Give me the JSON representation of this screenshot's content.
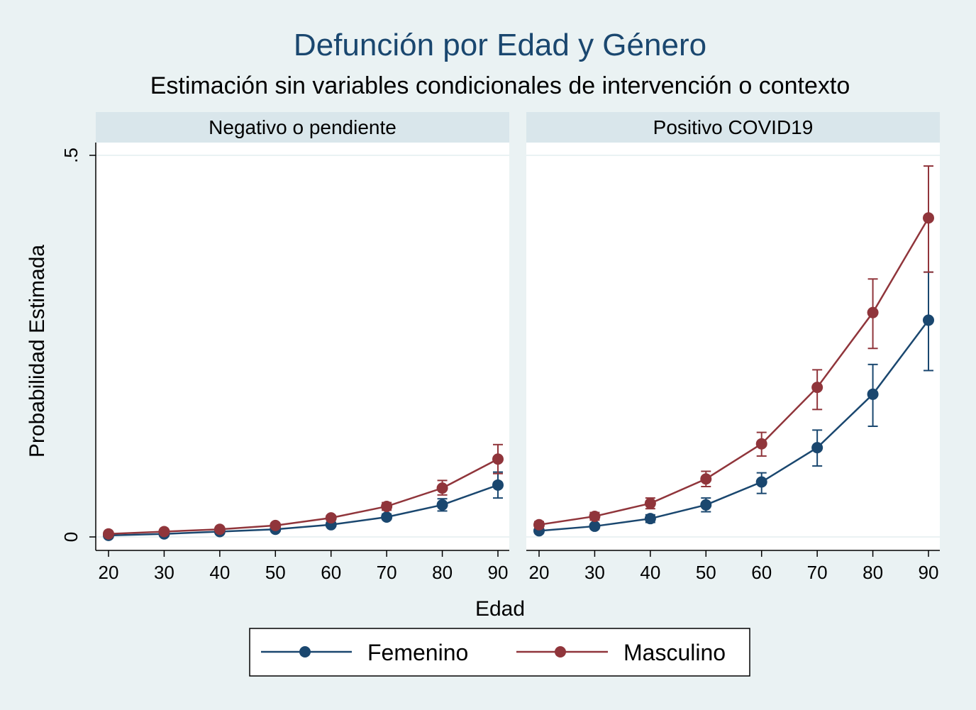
{
  "chart_data": {
    "type": "line",
    "title": "Defunción por Edad y Género",
    "subtitle": "Estimación sin variables condicionales de intervención o contexto",
    "xlabel": "Edad",
    "ylabel": "Probabilidad Estimada",
    "x_ticks": [
      20,
      30,
      40,
      50,
      60,
      70,
      80,
      90
    ],
    "x_tick_labels": [
      "20",
      "30",
      "40",
      "50",
      "60",
      "70",
      "80",
      "90"
    ],
    "y_ticks": [
      0,
      0.5
    ],
    "y_tick_labels": [
      "0",
      ".5"
    ],
    "ylim": [
      0,
      0.5
    ],
    "grid": true,
    "legend_position": "bottom",
    "legend": [
      "Femenino",
      "Masculino"
    ],
    "colors": {
      "Femenino": "#1a476f",
      "Masculino": "#90353b",
      "background": "#eaf2f3",
      "panel": "#ffffff",
      "strip": "#d9e6eb",
      "title": "#1a476f"
    },
    "panels": [
      {
        "title": "Negativo o pendiente",
        "x": [
          20,
          30,
          40,
          50,
          60,
          70,
          80,
          90
        ],
        "series": [
          {
            "name": "Femenino",
            "values": [
              0.002,
              0.004,
              0.007,
              0.01,
              0.016,
              0.026,
              0.042,
              0.068
            ],
            "ci_low": [
              0.001,
              0.003,
              0.006,
              0.009,
              0.014,
              0.023,
              0.034,
              0.051
            ],
            "ci_high": [
              0.003,
              0.005,
              0.008,
              0.011,
              0.018,
              0.03,
              0.05,
              0.085
            ]
          },
          {
            "name": "Masculino",
            "values": [
              0.004,
              0.007,
              0.01,
              0.015,
              0.025,
              0.04,
              0.064,
              0.102
            ],
            "ci_low": [
              0.003,
              0.006,
              0.009,
              0.013,
              0.022,
              0.035,
              0.055,
              0.083
            ],
            "ci_high": [
              0.005,
              0.008,
              0.011,
              0.017,
              0.028,
              0.045,
              0.074,
              0.121
            ]
          }
        ]
      },
      {
        "title": "Positivo COVID19",
        "x": [
          20,
          30,
          40,
          50,
          60,
          70,
          80,
          90
        ],
        "series": [
          {
            "name": "Femenino",
            "values": [
              0.008,
              0.014,
              0.024,
              0.042,
              0.072,
              0.117,
              0.187,
              0.284
            ],
            "ci_low": [
              0.006,
              0.011,
              0.019,
              0.033,
              0.057,
              0.093,
              0.145,
              0.218
            ],
            "ci_high": [
              0.01,
              0.017,
              0.029,
              0.051,
              0.084,
              0.14,
              0.226,
              0.347
            ]
          },
          {
            "name": "Masculino",
            "values": [
              0.016,
              0.027,
              0.044,
              0.076,
              0.122,
              0.196,
              0.294,
              0.418
            ],
            "ci_low": [
              0.012,
              0.022,
              0.037,
              0.066,
              0.106,
              0.167,
              0.247,
              0.347
            ],
            "ci_high": [
              0.02,
              0.032,
              0.051,
              0.086,
              0.137,
              0.219,
              0.338,
              0.486
            ]
          }
        ]
      }
    ]
  }
}
